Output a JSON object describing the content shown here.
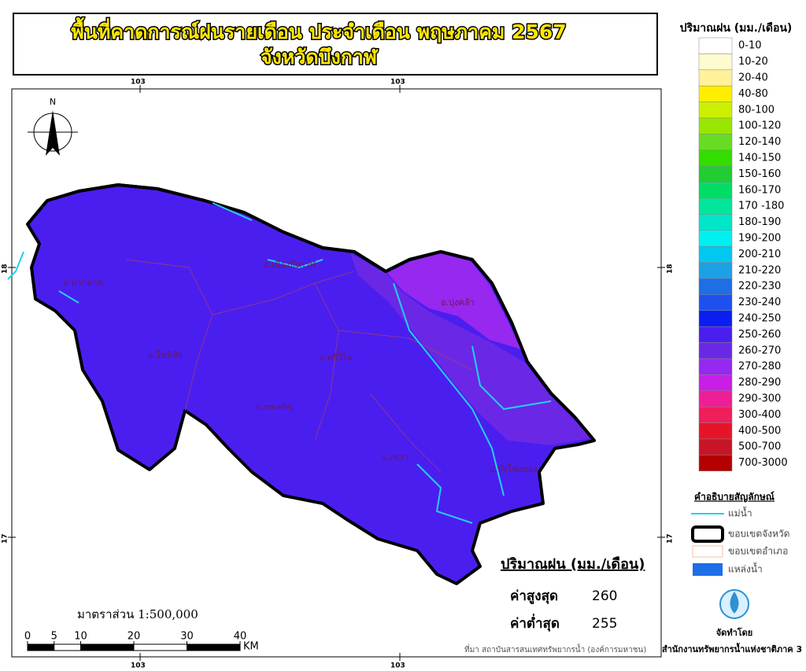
{
  "title": {
    "line1": "พื้นที่คาดการณ์ฝนรายเดือน ประจำเดือน พฤษภาคม 2567",
    "line2": "จังหวัดบึงกาฬ"
  },
  "map": {
    "north": "N",
    "coordinate_labels": {
      "top": [
        "103",
        "103"
      ],
      "bottom": [
        "103",
        "103"
      ],
      "left": [
        "18",
        "17"
      ],
      "right": [
        "18",
        "17"
      ]
    },
    "districts": [
      "อ.ปากคาด",
      "อ.เมืองบึงกาฬ",
      "อ.บุ่งคล้า",
      "อ.โซ่พิสัย",
      "อ.ศรีวิไล",
      "อ.พรเจริญ",
      "อ.เซกา",
      "อ.บึงโขงหลง"
    ]
  },
  "rain_legend": {
    "title": "ปริมาณฝน (มม./เดือน)",
    "classes": [
      {
        "label": "0-10",
        "color": "#ffffff"
      },
      {
        "label": "10-20",
        "color": "#fffbd0"
      },
      {
        "label": "20-40",
        "color": "#fff29a"
      },
      {
        "label": "40-80",
        "color": "#ffee00"
      },
      {
        "label": "80-100",
        "color": "#ccf000"
      },
      {
        "label": "100-120",
        "color": "#99e600"
      },
      {
        "label": "120-140",
        "color": "#66dd22"
      },
      {
        "label": "140-150",
        "color": "#33dd00"
      },
      {
        "label": "150-160",
        "color": "#22cc33"
      },
      {
        "label": "160-170",
        "color": "#00dd66"
      },
      {
        "label": "170 -180",
        "color": "#00e69a"
      },
      {
        "label": "180-190",
        "color": "#00e6c8"
      },
      {
        "label": "190-200",
        "color": "#00f0f0"
      },
      {
        "label": "200-210",
        "color": "#00c8f0"
      },
      {
        "label": "210-220",
        "color": "#1ea0e6"
      },
      {
        "label": "220-230",
        "color": "#1e6ee6"
      },
      {
        "label": "230-240",
        "color": "#1e50f0"
      },
      {
        "label": "240-250",
        "color": "#0a1ef0"
      },
      {
        "label": "250-260",
        "color": "#4b1ef0"
      },
      {
        "label": "260-270",
        "color": "#6a28e6"
      },
      {
        "label": "270-280",
        "color": "#9628f0"
      },
      {
        "label": "280-290",
        "color": "#c81ee6"
      },
      {
        "label": "290-300",
        "color": "#f01e96"
      },
      {
        "label": "300-400",
        "color": "#f01e5a"
      },
      {
        "label": "400-500",
        "color": "#e61428"
      },
      {
        "label": "500-700",
        "color": "#c81428"
      },
      {
        "label": "700-3000",
        "color": "#b40000"
      }
    ]
  },
  "symbol_legend": {
    "title": "คำอธิบายสัญลักษณ์",
    "items": [
      "แม่น้ำ",
      "ขอบเขตจังหวัด",
      "ขอบเขตอำเภอ",
      "แหล่งน้ำ"
    ]
  },
  "statistics": {
    "title": "ปริมาณฝน (มม./เดือน)",
    "max_label": "ค่าสูงสุด",
    "max": 260,
    "min_label": "ค่าต่ำสุด",
    "min": 255
  },
  "scale": {
    "text": "มาตราส่วน 1:500,000",
    "ticks": [
      0,
      5,
      10,
      20,
      30,
      40
    ],
    "unit": "KM"
  },
  "source": "ที่มา  สถาบันสารสนเทศทรัพยากรน้ำ (องค์การมหาชน)",
  "producer": {
    "label": "จัดทำโดย",
    "name": "สำนักงานทรัพยากรน้ำแห่งชาติภาค 3"
  }
}
